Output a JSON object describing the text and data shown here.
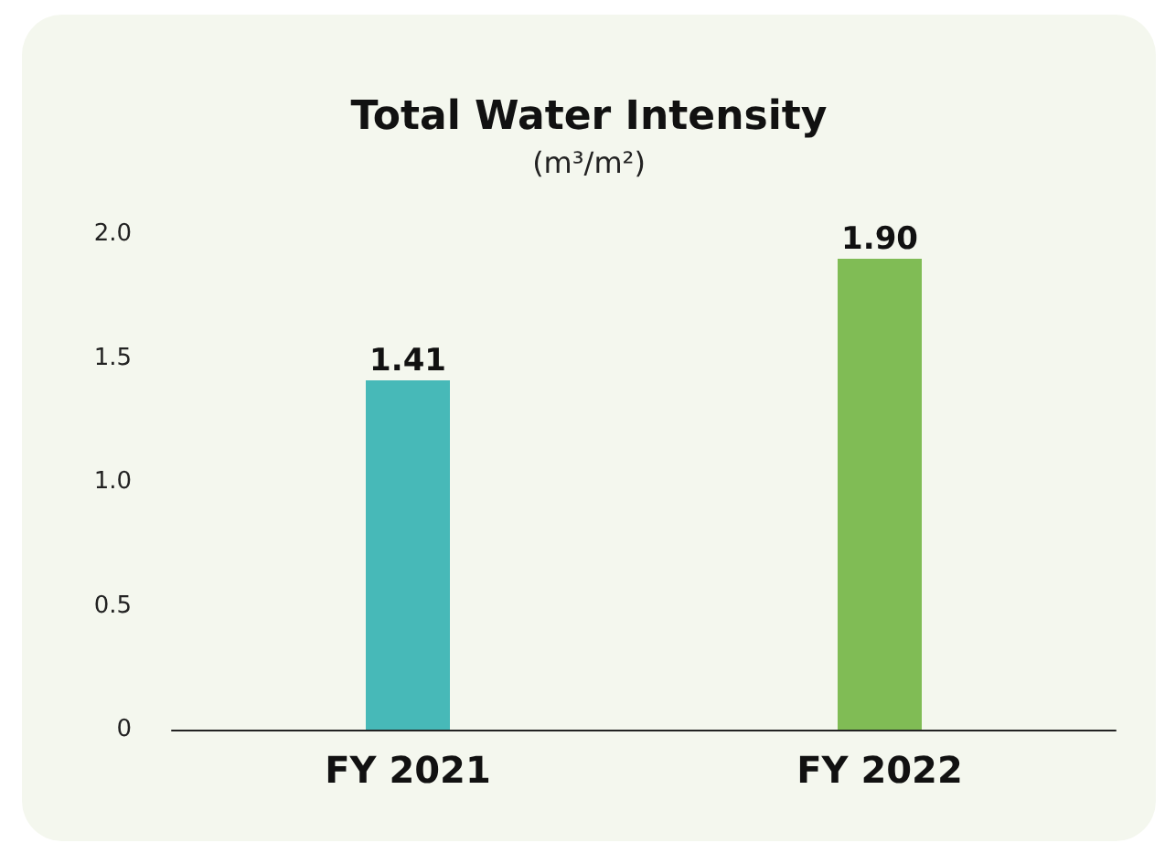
{
  "chart_data": {
    "type": "bar",
    "title": "Total Water Intensity",
    "subtitle": "(m³/m²)",
    "categories": [
      "FY 2021",
      "FY 2022"
    ],
    "values": [
      1.41,
      1.9
    ],
    "colors": [
      "#47b9b8",
      "#80bc55"
    ],
    "ylim": [
      0,
      2
    ],
    "yticks": [
      0,
      0.5,
      {
        "value": 1,
        "label": "1.0"
      },
      1.5,
      {
        "value": 2,
        "label": "2.0"
      }
    ],
    "value_labels": [
      "1.41",
      "1.90"
    ],
    "grid": false
  }
}
